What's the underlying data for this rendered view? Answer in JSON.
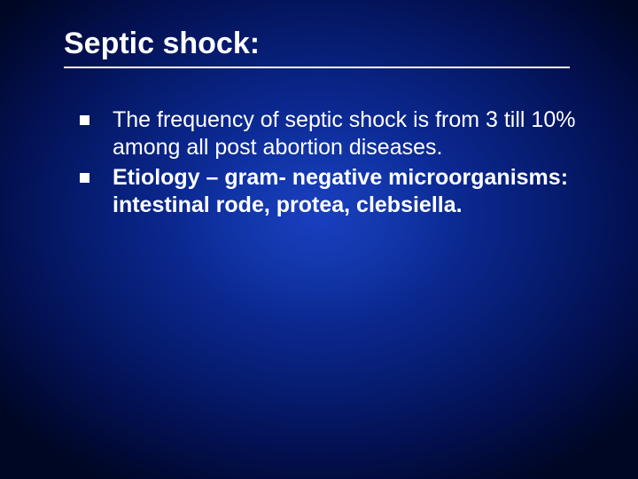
{
  "slide": {
    "title": "Septic shock:",
    "title_fontsize": 34,
    "body_fontsize": 25,
    "colors": {
      "text": "#ffffff",
      "bullet": "#ffffff",
      "underline": "#ffffff",
      "bg_center": "#1a3fbf",
      "bg_edge": "#000724"
    },
    "bullets": [
      {
        "runs": [
          {
            "text": "The frequency of septic shock is  from  3 till 10%  among all post abortion diseases.",
            "bold": false
          }
        ]
      },
      {
        "runs": [
          {
            "text": "Etiology – gram- negative microorganisms: intestinal rode, protea, clebsiella.",
            "bold": true
          }
        ]
      }
    ]
  }
}
